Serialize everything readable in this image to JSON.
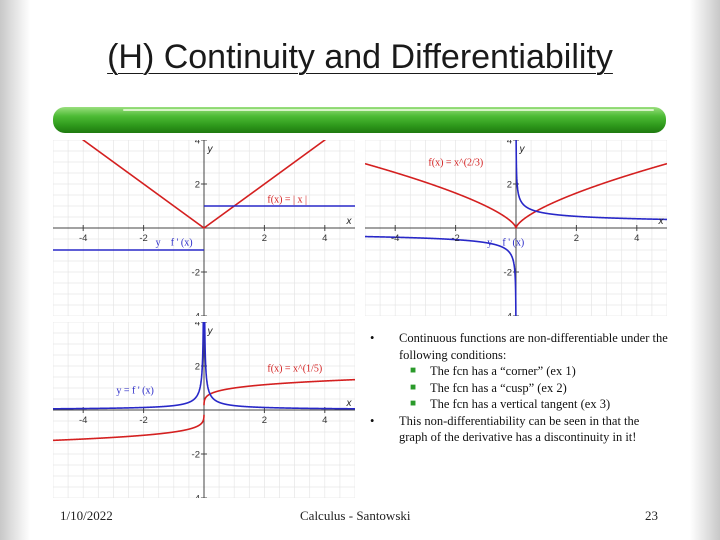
{
  "slide": {
    "title": "(H) Continuity and Differentiability",
    "bullets": [
      {
        "text": "Continuous functions are non-differentiable under the following conditions:",
        "sub": [
          "The fcn has a “corner” (ex 1)",
          "The fcn has a “cusp” (ex 2)",
          "The fcn has a vertical tangent (ex 3)"
        ]
      },
      {
        "text": "This non-differentiability can be seen in that the graph of the derivative has a discontinuity in it!",
        "sub": []
      }
    ],
    "footer": {
      "date": "1/10/2022",
      "center": "Calculus - Santowski",
      "page": "23"
    }
  },
  "colors": {
    "function": "#d42020",
    "derivative": "#2828c8",
    "accent_bar": "#3aa82a"
  },
  "chart_data": [
    {
      "type": "line",
      "xlim": [
        -5,
        5
      ],
      "ylim": [
        -4,
        4
      ],
      "x_ticks": [
        "-4",
        "-2",
        "2",
        "4"
      ],
      "y_ticks": [
        "4",
        "2",
        "-2",
        "-4"
      ],
      "axis_x_label": "x",
      "axis_y_label": "y",
      "grid": true,
      "series": [
        {
          "name": "f(x) = | x |",
          "kind": "function",
          "points": [
            [
              -5,
              5
            ],
            [
              0,
              0
            ],
            [
              5,
              5
            ]
          ]
        },
        {
          "name": "f ' (x)",
          "kind": "derivative",
          "segments": [
            [
              [
                -5,
                -1
              ],
              [
                0,
                -1
              ]
            ],
            [
              [
                0,
                1
              ],
              [
                5,
                1
              ]
            ]
          ]
        }
      ],
      "labels": [
        {
          "text": "f(x) = | x |",
          "x": 2.1,
          "y": 1.15,
          "color": "function"
        },
        {
          "text": "y",
          "x": -1.6,
          "y": -0.8,
          "color": "derivative"
        },
        {
          "text": "f ' (x)",
          "x": -1.1,
          "y": -0.8,
          "color": "derivative"
        }
      ]
    },
    {
      "type": "line",
      "xlim": [
        -5,
        5
      ],
      "ylim": [
        -4,
        4
      ],
      "x_ticks": [
        "-4",
        "-2",
        "2",
        "4"
      ],
      "y_ticks": [
        "4",
        "2",
        "-2",
        "-4"
      ],
      "axis_x_label": "x",
      "axis_y_label": "y",
      "grid": true,
      "series": [
        {
          "name": "f(x) = x^(2/3)",
          "kind": "function",
          "formula": "x^(2/3)"
        },
        {
          "name": "f ' (x)",
          "kind": "derivative",
          "formula": "(2/3)x^(-1/3)"
        }
      ],
      "labels": [
        {
          "text": "f(x) = x^(2/3)",
          "x": -2.9,
          "y": 2.85,
          "color": "function"
        },
        {
          "text": "y",
          "x": -0.95,
          "y": -0.8,
          "color": "derivative"
        },
        {
          "text": "f ' (x)",
          "x": -0.45,
          "y": -0.8,
          "color": "derivative"
        }
      ]
    },
    {
      "type": "line",
      "xlim": [
        -5,
        5
      ],
      "ylim": [
        -4,
        4
      ],
      "x_ticks": [
        "-4",
        "-2",
        "2",
        "4"
      ],
      "y_ticks": [
        "4",
        "2",
        "-2",
        "-4"
      ],
      "axis_x_label": "x",
      "axis_y_label": "y",
      "grid": true,
      "series": [
        {
          "name": "f(x) = x^(1/5)",
          "kind": "function",
          "formula": "x^(1/5)"
        },
        {
          "name": "y = f ' (x)",
          "kind": "derivative",
          "formula": "(1/5)x^(-4/5)"
        }
      ],
      "labels": [
        {
          "text": "f(x) = x^(1/5)",
          "x": 2.1,
          "y": 1.75,
          "color": "function"
        },
        {
          "text": "y = f ' (x)",
          "x": -2.9,
          "y": 0.75,
          "color": "derivative"
        }
      ]
    }
  ]
}
